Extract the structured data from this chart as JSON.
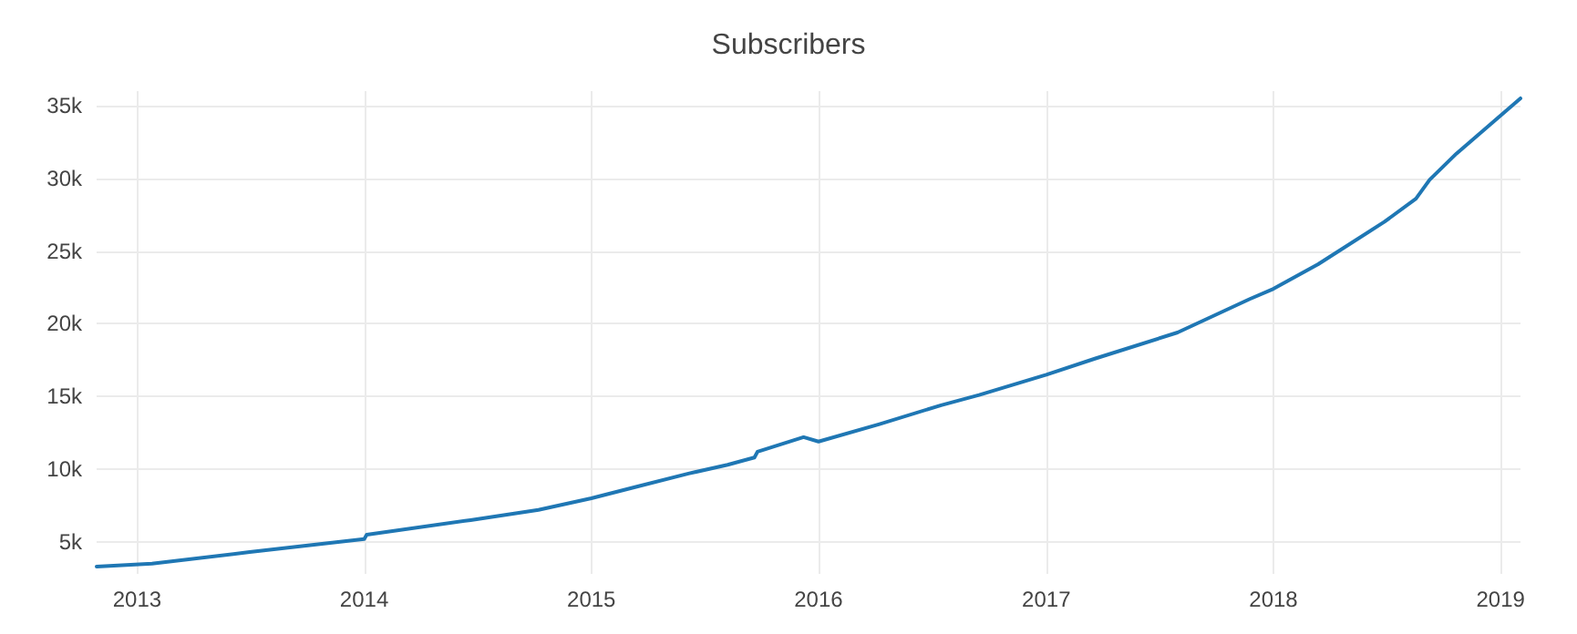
{
  "chart_data": {
    "type": "line",
    "title": "Subscribers",
    "x": [
      "2012-10-28",
      "2013-01-25",
      "2013-07-01",
      "2014-01-01",
      "2014-01-05",
      "2014-06-21",
      "2014-10-08",
      "2015-01-01",
      "2015-03-15",
      "2015-06-06",
      "2015-08-08",
      "2015-09-20",
      "2015-09-25",
      "2015-12-08",
      "2016-01-01",
      "2016-04-08",
      "2016-07-16",
      "2016-09-15",
      "2017-01-01",
      "2017-03-20",
      "2017-07-31",
      "2017-11-24",
      "2018-01-01",
      "2018-03-14",
      "2018-06-28",
      "2018-08-18",
      "2018-09-09",
      "2018-10-22",
      "2019-02-02"
    ],
    "series": [
      {
        "color": "#1f77b4",
        "values": [
          3300,
          3500,
          4300,
          5200,
          5500,
          6500,
          7200,
          8000,
          8800,
          9700,
          10300,
          10800,
          11200,
          12200,
          11900,
          13100,
          14400,
          15100,
          16500,
          17600,
          19400,
          21700,
          22400,
          24100,
          27000,
          28600,
          29900,
          31700,
          35500
        ]
      }
    ],
    "xlim": [
      "2012-10-28",
      "2019-02-02"
    ],
    "xticks": [
      "2013",
      "2014",
      "2015",
      "2016",
      "2017",
      "2018",
      "2019"
    ],
    "ylim": [
      2800,
      36000
    ],
    "yticks": [
      {
        "value": 5000,
        "label": "5k"
      },
      {
        "value": 10000,
        "label": "10k"
      },
      {
        "value": 15000,
        "label": "15k"
      },
      {
        "value": 20000,
        "label": "20k"
      },
      {
        "value": 25000,
        "label": "25k"
      },
      {
        "value": 30000,
        "label": "30k"
      },
      {
        "value": 35000,
        "label": "35k"
      }
    ],
    "grid": true,
    "marker": "none",
    "line_style": "solid"
  }
}
